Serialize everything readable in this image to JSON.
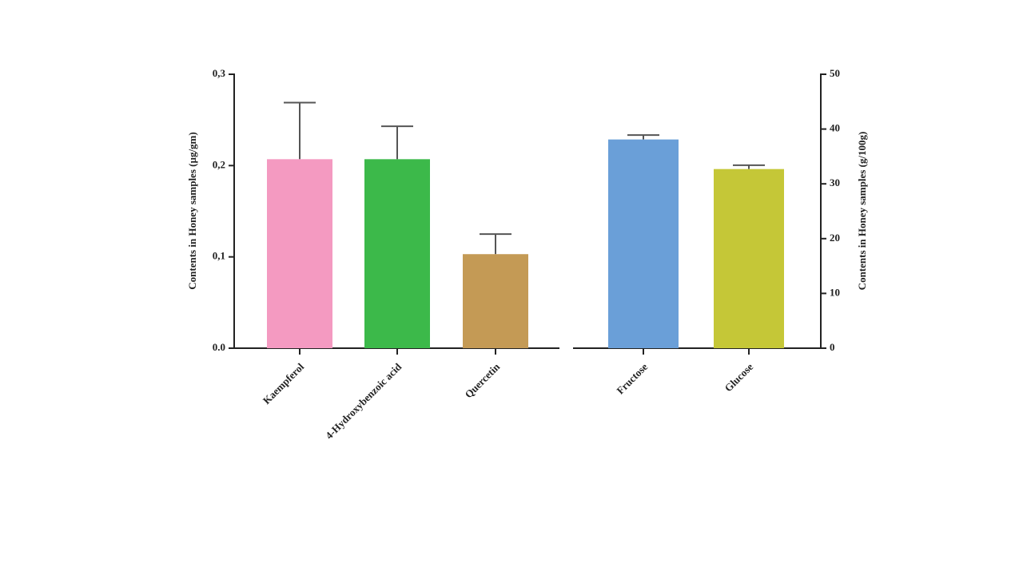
{
  "chart_data": {
    "type": "bar",
    "y_label": "Contents in Honey samples (µg/gm)",
    "y2_label": "Contents in Honey samples (g/100g)",
    "ylim": [
      0,
      0.3
    ],
    "yticks": [
      {
        "value": 0,
        "label": "0.0"
      },
      {
        "value": 0.1,
        "label": "0,1"
      },
      {
        "value": 0.2,
        "label": "0,2"
      },
      {
        "value": 0.3,
        "label": "0,3"
      }
    ],
    "y2lim": [
      0,
      50
    ],
    "y2ticks": [
      0,
      10,
      20,
      30,
      40,
      50
    ],
    "series": [
      {
        "categories": [
          "Kaempferol",
          "4-Hydroxybenzoic acid",
          "Quercetin"
        ],
        "values": [
          0.207,
          0.207,
          0.103
        ],
        "errors": [
          0.062,
          0.036,
          0.022
        ],
        "colors": [
          "#f49ac1",
          "#3cb94a",
          "#c49a55"
        ]
      },
      {
        "axis": "y2",
        "categories": [
          "Fructose",
          "Glucose"
        ],
        "values": [
          38.1,
          32.7
        ],
        "errors": [
          0.8,
          0.7
        ],
        "colors": [
          "#6a9fd8",
          "#c5c737"
        ]
      }
    ]
  }
}
